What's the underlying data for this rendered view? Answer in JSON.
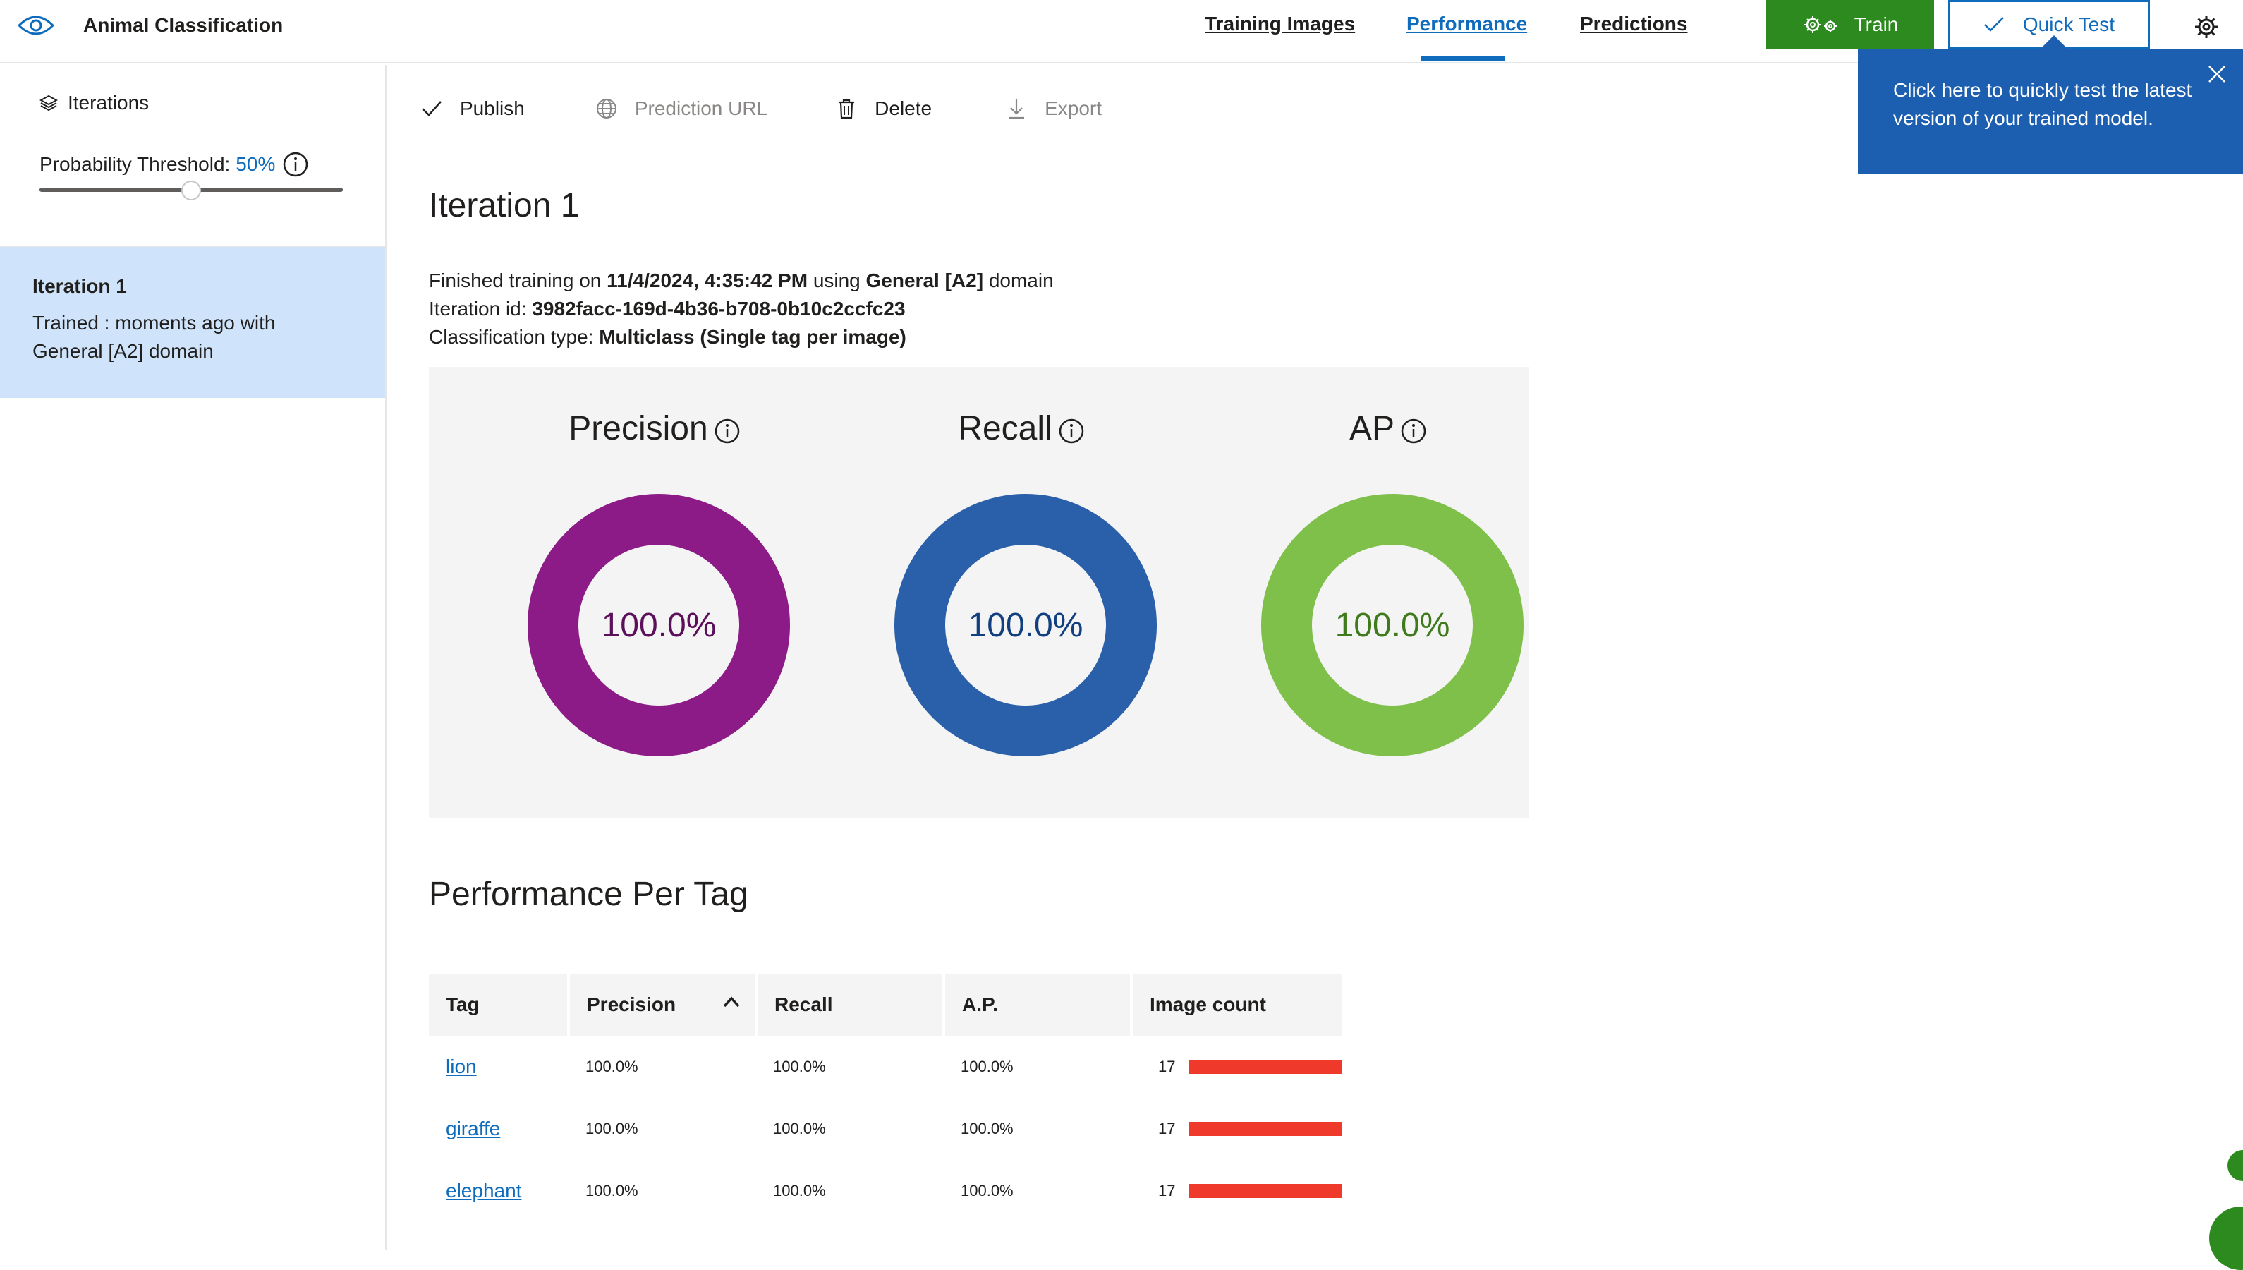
{
  "app": {
    "title": "Animal Classification"
  },
  "nav": {
    "tabs": [
      {
        "label": "Training Images"
      },
      {
        "label": "Performance"
      },
      {
        "label": "Predictions"
      }
    ],
    "train_label": "Train",
    "quick_test_label": "Quick Test"
  },
  "tooltip": {
    "text": "Click here to quickly test the latest version of your trained model."
  },
  "sidebar": {
    "heading": "Iterations",
    "threshold_label": "Probability Threshold:",
    "threshold_value": "50%",
    "threshold_fraction": 0.5,
    "iteration": {
      "title": "Iteration 1",
      "description": "Trained : moments ago with General [A2] domain"
    }
  },
  "toolbar": {
    "publish": "Publish",
    "prediction_url": "Prediction URL",
    "delete": "Delete",
    "export": "Export"
  },
  "main": {
    "title": "Iteration 1",
    "info": {
      "line1_prefix": "Finished training on",
      "line1_date": "11/4/2024, 4:35:42 PM",
      "line1_mid": "using",
      "line1_domain": "General [A2]",
      "line1_suffix": "domain",
      "line2_prefix": "Iteration id:",
      "line2_id": "3982facc-169d-4b36-b708-0b10c2ccfc23",
      "line3_prefix": "Classification type:",
      "line3_type": "Multiclass (Single tag per image)"
    },
    "metrics": [
      {
        "label": "Precision",
        "value": "100.0%",
        "fraction": 1.0,
        "color": "#8c1b87",
        "text_color": "#5c0f5a"
      },
      {
        "label": "Recall",
        "value": "100.0%",
        "fraction": 1.0,
        "color": "#2a5faa",
        "text_color": "#123f80"
      },
      {
        "label": "AP",
        "value": "100.0%",
        "fraction": 1.0,
        "color": "#7fc04a",
        "text_color": "#3f7a1c"
      }
    ],
    "per_tag_title": "Performance Per Tag",
    "table": {
      "headers": [
        "Tag",
        "Precision",
        "Recall",
        "A.P.",
        "Image count"
      ],
      "rows": [
        {
          "tag": "lion",
          "precision": "100.0%",
          "recall": "100.0%",
          "ap": "100.0%",
          "count": "17",
          "count_value": 17
        },
        {
          "tag": "giraffe",
          "precision": "100.0%",
          "recall": "100.0%",
          "ap": "100.0%",
          "count": "17",
          "count_value": 17
        },
        {
          "tag": "elephant",
          "precision": "100.0%",
          "recall": "100.0%",
          "ap": "100.0%",
          "count": "17",
          "count_value": 17
        }
      ],
      "count_max": 17
    }
  },
  "colors": {
    "accent": "#0f6cbd",
    "train_green": "#2c8a1f",
    "tooltip_blue": "#1c5fb0",
    "bar_red": "#ef3a2b"
  }
}
